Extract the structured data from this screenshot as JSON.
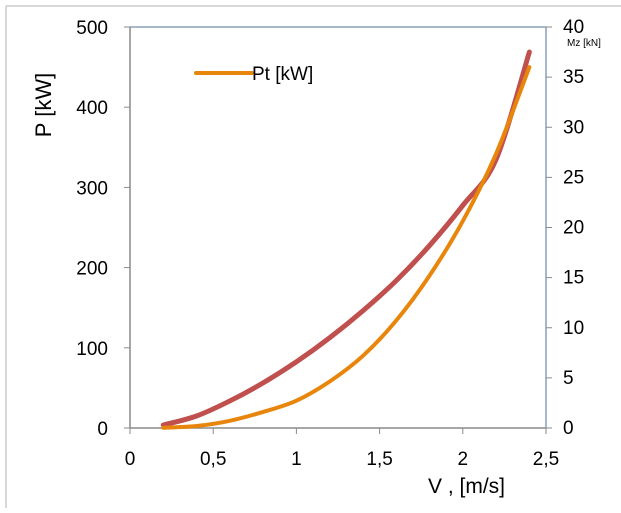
{
  "chart_data": {
    "type": "line",
    "xlabel": "V , [m/s]",
    "ylabel": "P [kW]",
    "y2label": "Mz [kN]",
    "xlim": [
      0,
      2.5
    ],
    "ylim": [
      0,
      500
    ],
    "y2lim": [
      0,
      40
    ],
    "x_ticks": [
      "0",
      "0,5",
      "1",
      "1,5",
      "2",
      "2,5"
    ],
    "y_ticks": [
      "0",
      "100",
      "200",
      "300",
      "400",
      "500"
    ],
    "y2_ticks": [
      "0",
      "5",
      "10",
      "15",
      "20",
      "25",
      "30",
      "35",
      "40"
    ],
    "grid": false,
    "legend_position": "top-left",
    "series": [
      {
        "name": "Pt [kW]",
        "axis": "left",
        "color": "#E8860C",
        "x": [
          0.2,
          0.4,
          0.6,
          0.8,
          1.0,
          1.2,
          1.4,
          1.6,
          1.8,
          2.0,
          2.2,
          2.4
        ],
        "values": [
          0.3,
          2.5,
          9,
          20,
          34,
          58,
          90,
          134,
          190,
          258,
          342,
          450
        ]
      },
      {
        "axis": "right",
        "color": "#C0504D",
        "x": [
          0.2,
          0.4,
          0.6,
          0.8,
          1.0,
          1.2,
          1.4,
          1.6,
          1.8,
          2.0,
          2.2,
          2.4
        ],
        "values": [
          0.3,
          1.2,
          2.7,
          4.5,
          6.6,
          9.0,
          11.7,
          14.7,
          18.2,
          22.2,
          26.8,
          37.5
        ]
      }
    ]
  }
}
